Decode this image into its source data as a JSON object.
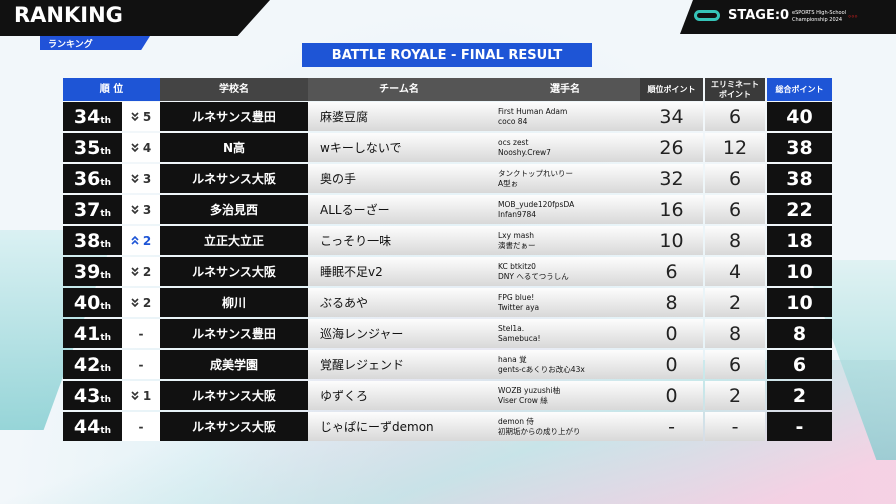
{
  "header": {
    "title": "RANKING",
    "subtitle": "ランキング",
    "brand": "STAGE:0",
    "event": [
      "eSPORTS High-School",
      "Championship 2024"
    ]
  },
  "table": {
    "title": "BATTLE ROYALE - FINAL RESULT",
    "columns": [
      "順 位",
      "学校名",
      "チーム名",
      "選手名",
      "順位ポイント",
      [
        "エリミネート",
        "ポイント"
      ],
      "総合ポイント"
    ],
    "rows": [
      {
        "rank": "34",
        "suffix": "th",
        "direction": "down",
        "change": "5",
        "school": "ルネサンス豊田",
        "team": "麻婆豆腐",
        "players": [
          "First Human Adam",
          "coco 84"
        ],
        "rank_points": 34,
        "elim_points": 6,
        "total": 40
      },
      {
        "rank": "35",
        "suffix": "th",
        "direction": "down",
        "change": "4",
        "school": "N高",
        "team": "wキーしないで",
        "players": [
          "ocs zest",
          "Nooshy.Crew7"
        ],
        "rank_points": 26,
        "elim_points": 12,
        "total": 38
      },
      {
        "rank": "36",
        "suffix": "th",
        "direction": "down",
        "change": "3",
        "school": "ルネサンス大阪",
        "team": "奥の手",
        "players": [
          "タンクトップれいりー",
          "A型ぉ"
        ],
        "rank_points": 32,
        "elim_points": 6,
        "total": 38
      },
      {
        "rank": "37",
        "suffix": "th",
        "direction": "down",
        "change": "3",
        "school": "多治見西",
        "team": "ALLるーざー",
        "players": [
          "MOB_yude120fpsDA",
          "Infan9784"
        ],
        "rank_points": 16,
        "elim_points": 6,
        "total": 22
      },
      {
        "rank": "38",
        "suffix": "th",
        "direction": "up",
        "change": "2",
        "school": "立正大立正",
        "team": "こっそり一味",
        "players": [
          "Lxy mash",
          "演書だぁー"
        ],
        "rank_points": 10,
        "elim_points": 8,
        "total": 18
      },
      {
        "rank": "39",
        "suffix": "th",
        "direction": "down",
        "change": "2",
        "school": "ルネサンス大阪",
        "team": "睡眠不足v2",
        "players": [
          "KC btkitz0",
          "DNY へるてつうしん"
        ],
        "rank_points": 6,
        "elim_points": 4,
        "total": 10
      },
      {
        "rank": "40",
        "suffix": "th",
        "direction": "down",
        "change": "2",
        "school": "柳川",
        "team": "ぶるあや",
        "players": [
          "FPG blue!",
          "Twitter aya"
        ],
        "rank_points": 8,
        "elim_points": 2,
        "total": 10
      },
      {
        "rank": "41",
        "suffix": "th",
        "direction": "none",
        "change": "-",
        "school": "ルネサンス豊田",
        "team": "巡海レンジャー",
        "players": [
          "Stel1a.",
          "Samebuca!"
        ],
        "rank_points": 0,
        "elim_points": 8,
        "total": 8
      },
      {
        "rank": "42",
        "suffix": "th",
        "direction": "none",
        "change": "-",
        "school": "成美学園",
        "team": "覚醒レジェンド",
        "players": [
          "hana 覚",
          "gents-cあくりお改心43x"
        ],
        "rank_points": 0,
        "elim_points": 6,
        "total": 6
      },
      {
        "rank": "43",
        "suffix": "th",
        "direction": "down",
        "change": "1",
        "school": "ルネサンス大阪",
        "team": "ゆずくろ",
        "players": [
          "WOZB yuzushi柚",
          "Viser Crow 絲"
        ],
        "rank_points": 0,
        "elim_points": 2,
        "total": 2
      },
      {
        "rank": "44",
        "suffix": "th",
        "direction": "none",
        "change": "-",
        "school": "ルネサンス大阪",
        "team": "じゃぱにーずdemon",
        "players": [
          "demon 侍",
          "初期垢からの成り上がり"
        ],
        "rank_points": "-",
        "elim_points": "-",
        "total": "-"
      }
    ]
  }
}
